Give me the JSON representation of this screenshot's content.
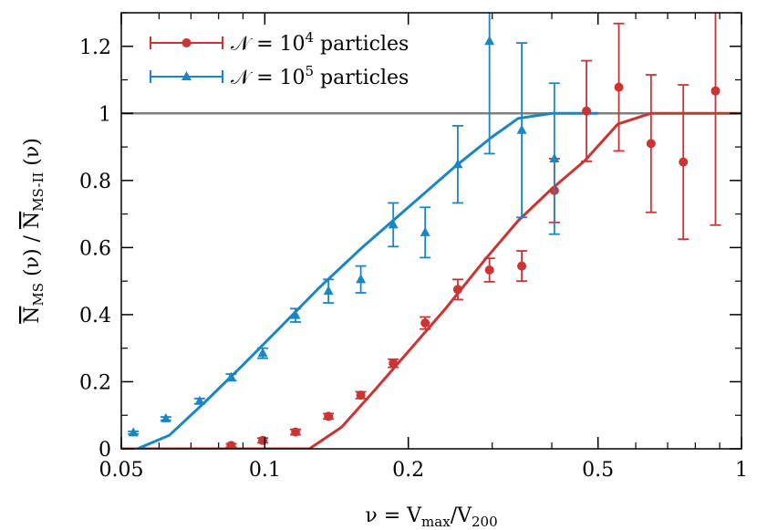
{
  "chart_data": {
    "type": "line",
    "x_scale": "log",
    "xlim": [
      0.05,
      1
    ],
    "ylim": [
      0,
      1.3
    ],
    "xlabel": "ν = V_max/V_200",
    "ylabel": "N̄_MS(ν) / N̄_MS-II(ν)",
    "x_ticks": [
      0.05,
      0.1,
      0.2,
      0.5,
      1
    ],
    "x_tick_labels": [
      "0.05",
      "0.1",
      "0.2",
      "0.5",
      "1"
    ],
    "y_ticks": [
      0,
      0.2,
      0.4,
      0.6,
      0.8,
      1,
      1.2
    ],
    "y_tick_labels": [
      "0",
      "0.2",
      "0.4",
      "0.6",
      "0.8",
      "1",
      "1.2"
    ],
    "reference_line": {
      "y": 1,
      "color": "#808080"
    },
    "legend_placement": "top-left",
    "series": [
      {
        "name": "𝒩 = 10⁴ particles",
        "name_parts": {
          "prefix": "𝒩 = 10",
          "exp": "4",
          "suffix": " particles"
        },
        "color": "#cc3333",
        "marker": "circle",
        "points": [
          {
            "x": 0.085,
            "y": 0.01,
            "err": 0.005
          },
          {
            "x": 0.099,
            "y": 0.025,
            "err": 0.007
          },
          {
            "x": 0.116,
            "y": 0.05,
            "err": 0.008
          },
          {
            "x": 0.136,
            "y": 0.097,
            "err": 0.008
          },
          {
            "x": 0.159,
            "y": 0.16,
            "err": 0.01
          },
          {
            "x": 0.186,
            "y": 0.255,
            "err": 0.012
          },
          {
            "x": 0.217,
            "y": 0.375,
            "err": 0.018
          },
          {
            "x": 0.254,
            "y": 0.475,
            "err": 0.03
          },
          {
            "x": 0.296,
            "y": 0.533,
            "err": 0.035
          },
          {
            "x": 0.346,
            "y": 0.545,
            "err": 0.045
          },
          {
            "x": 0.405,
            "y": 0.77,
            "err": 0.095
          },
          {
            "x": 0.473,
            "y": 1.007,
            "err": 0.15
          },
          {
            "x": 0.553,
            "y": 1.078,
            "err": 0.19
          },
          {
            "x": 0.646,
            "y": 0.91,
            "err": 0.205
          },
          {
            "x": 0.755,
            "y": 0.855,
            "err": 0.23
          },
          {
            "x": 0.882,
            "y": 1.067,
            "err": 0.4
          }
        ],
        "fit": [
          [
            0.05,
            0
          ],
          [
            0.124,
            0
          ],
          [
            0.145,
            0.065
          ],
          [
            0.17,
            0.175
          ],
          [
            0.2,
            0.29
          ],
          [
            0.24,
            0.42
          ],
          [
            0.29,
            0.565
          ],
          [
            0.34,
            0.68
          ],
          [
            0.4,
            0.775
          ],
          [
            0.47,
            0.86
          ],
          [
            0.55,
            0.968
          ],
          [
            0.645,
            1.0
          ],
          [
            1.0,
            1.0
          ]
        ]
      },
      {
        "name": "𝒩 = 10⁵ particles",
        "name_parts": {
          "prefix": "𝒩 = 10",
          "exp": "5",
          "suffix": " particles"
        },
        "color": "#1a86c4",
        "marker": "triangle",
        "points": [
          {
            "x": 0.053,
            "y": 0.048,
            "err": 0.004
          },
          {
            "x": 0.062,
            "y": 0.09,
            "err": 0.005
          },
          {
            "x": 0.073,
            "y": 0.142,
            "err": 0.008
          },
          {
            "x": 0.085,
            "y": 0.213,
            "err": 0.01
          },
          {
            "x": 0.099,
            "y": 0.285,
            "err": 0.015
          },
          {
            "x": 0.116,
            "y": 0.398,
            "err": 0.02
          },
          {
            "x": 0.136,
            "y": 0.47,
            "err": 0.035
          },
          {
            "x": 0.159,
            "y": 0.505,
            "err": 0.04
          },
          {
            "x": 0.186,
            "y": 0.668,
            "err": 0.065
          },
          {
            "x": 0.217,
            "y": 0.645,
            "err": 0.075
          },
          {
            "x": 0.254,
            "y": 0.848,
            "err": 0.115
          },
          {
            "x": 0.296,
            "y": 1.215,
            "err": 0.335
          },
          {
            "x": 0.346,
            "y": 0.95,
            "err": 0.26
          },
          {
            "x": 0.405,
            "y": 0.865,
            "err": 0.225
          }
        ],
        "fit": [
          [
            0.05,
            -0.02
          ],
          [
            0.063,
            0.04
          ],
          [
            0.075,
            0.14
          ],
          [
            0.09,
            0.25
          ],
          [
            0.11,
            0.375
          ],
          [
            0.13,
            0.48
          ],
          [
            0.16,
            0.6
          ],
          [
            0.2,
            0.72
          ],
          [
            0.25,
            0.84
          ],
          [
            0.3,
            0.93
          ],
          [
            0.34,
            0.985
          ],
          [
            0.4,
            1.0
          ],
          [
            0.5,
            1.0
          ]
        ]
      }
    ]
  }
}
